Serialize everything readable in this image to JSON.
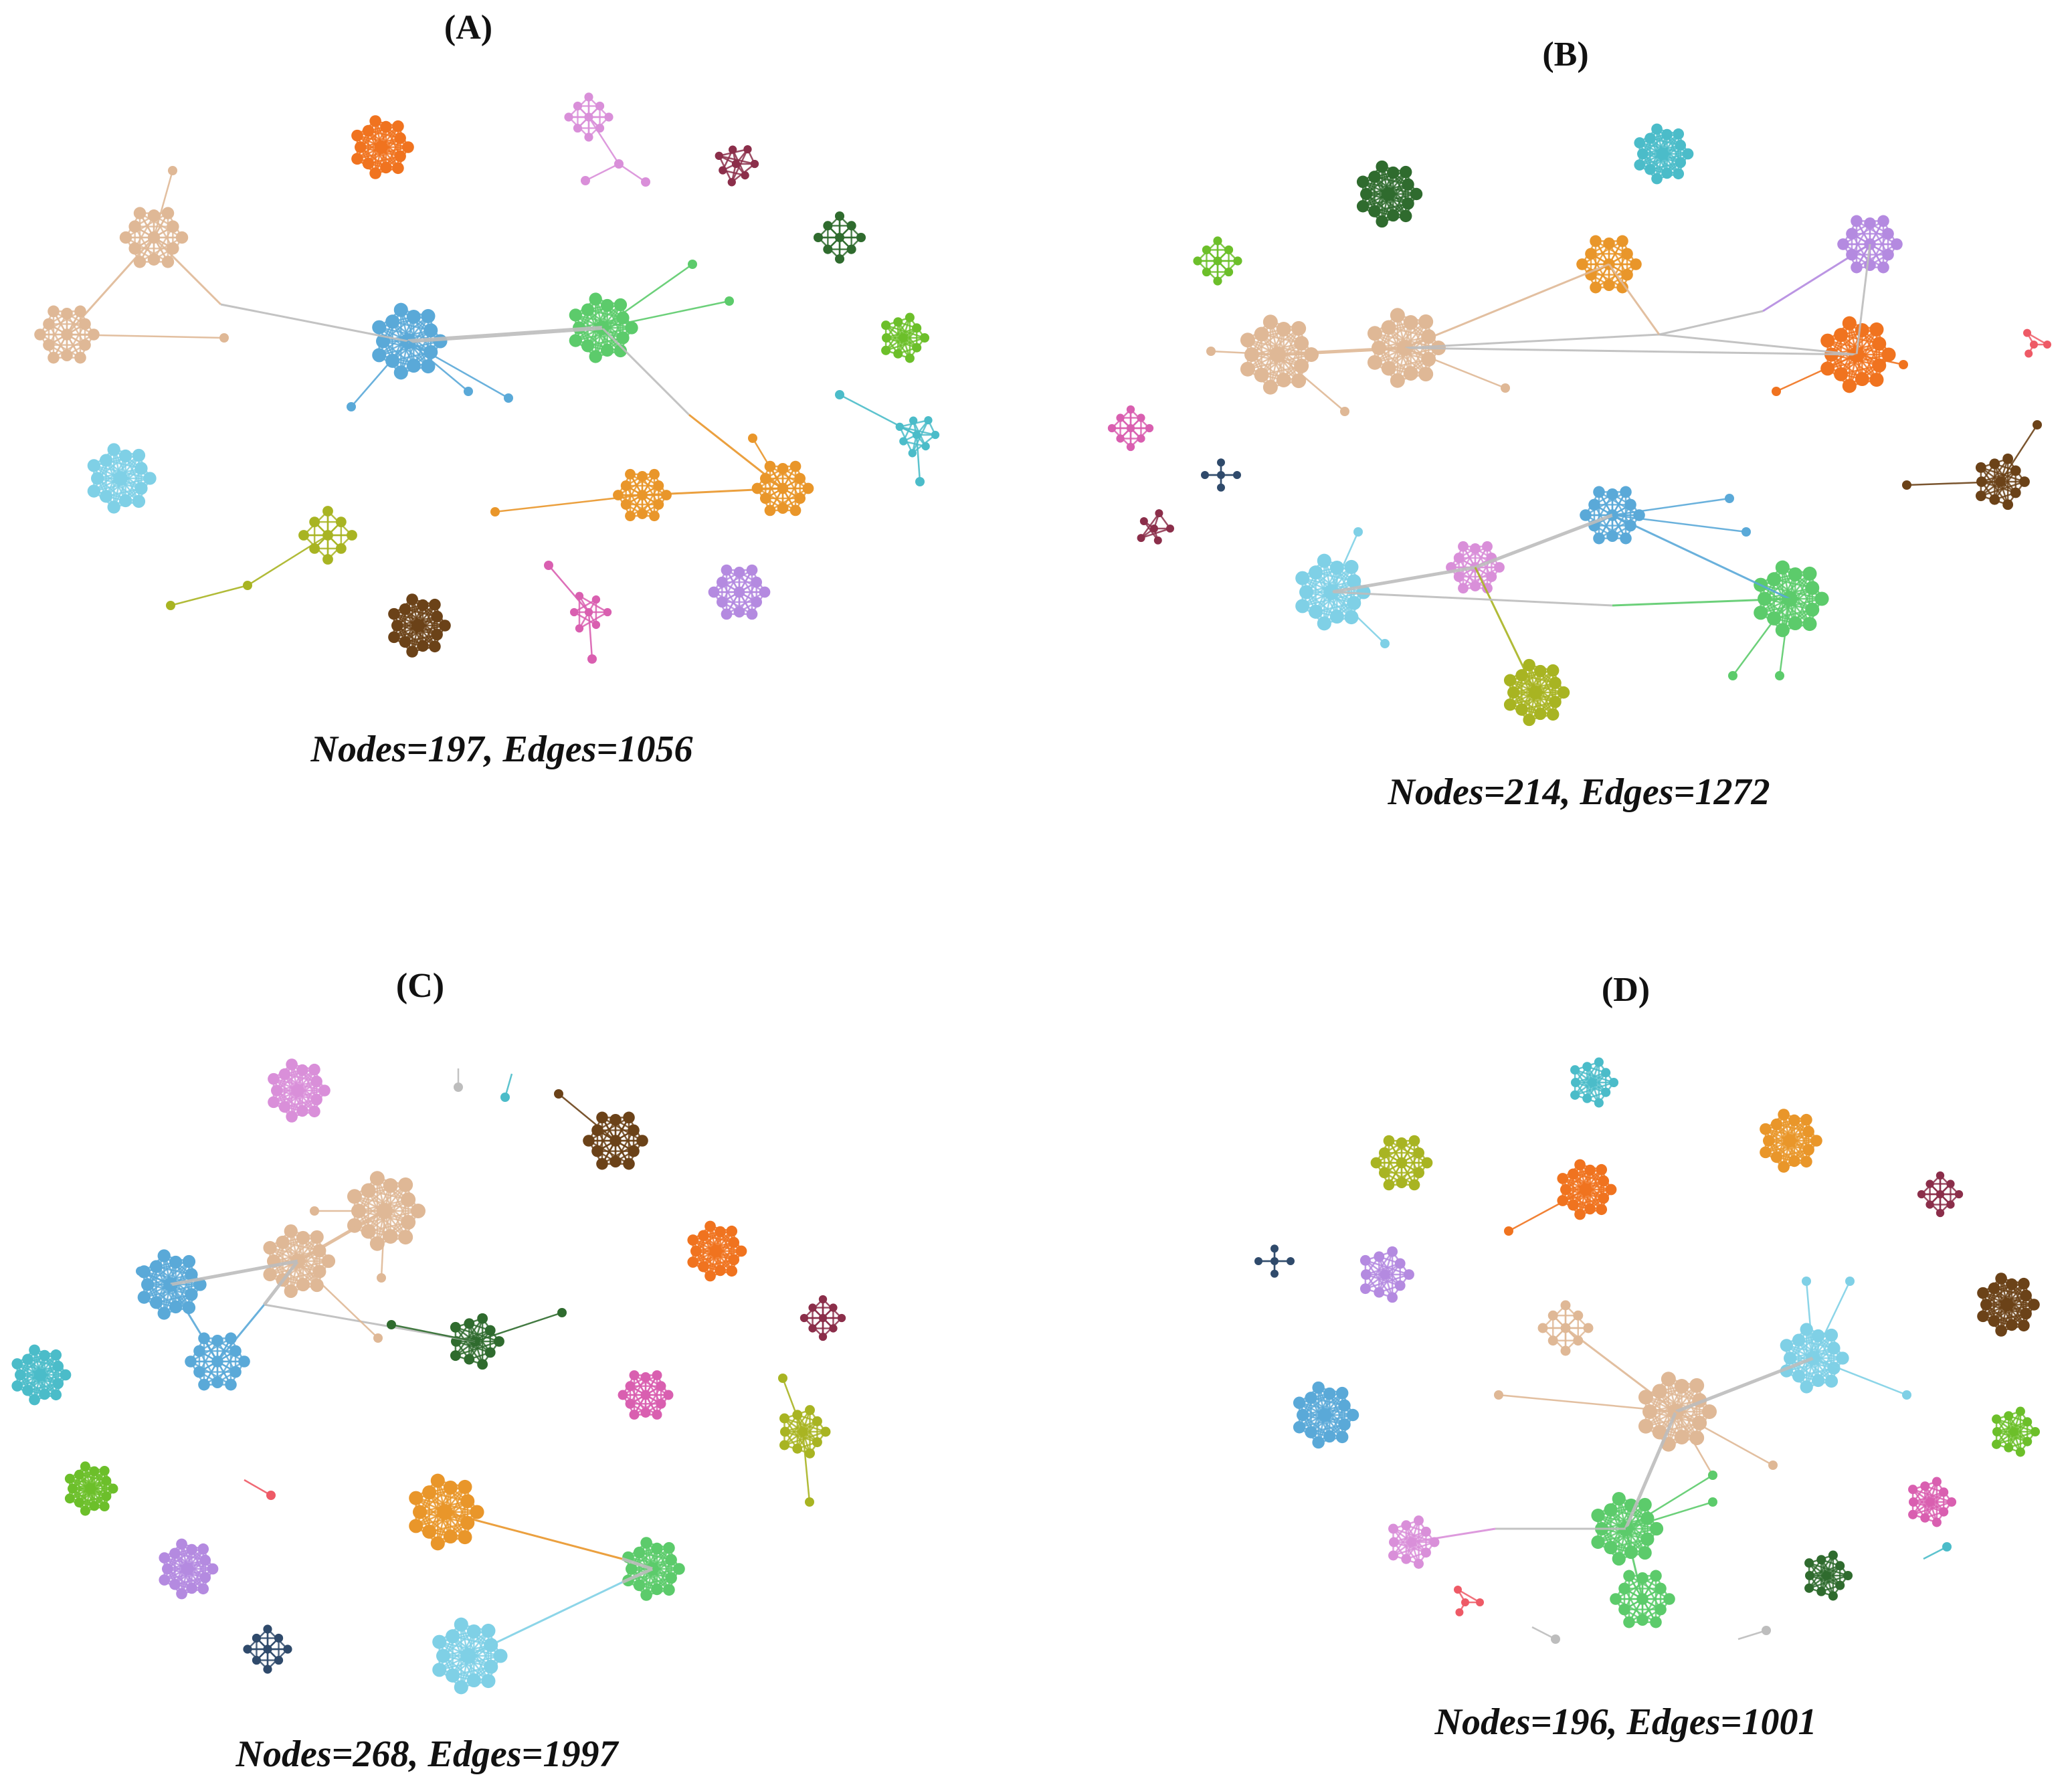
{
  "panels": [
    {
      "id": "A",
      "label": "(A)",
      "caption": "Nodes=197, Edges=1056"
    },
    {
      "id": "B",
      "label": "(B)",
      "caption": "Nodes=214, Edges=1272"
    },
    {
      "id": "C",
      "label": "(C)",
      "caption": "Nodes=268, Edges=1997"
    },
    {
      "id": "D",
      "label": "(D)",
      "caption": "Nodes=196, Edges=1001"
    }
  ],
  "colors": {
    "tan": "#dfb896",
    "blue": "#5aa9d8",
    "green": "#5ccb6b",
    "orange_light": "#e9962a",
    "orange": "#f0731f",
    "pink": "#d98fd9",
    "maroon": "#8b2e4a",
    "dark_green": "#2f6b2e",
    "lime": "#6cbf2a",
    "cyan": "#4bbcc9",
    "sky": "#7fd0e6",
    "olive": "#a8b422",
    "magenta": "#d95fb0",
    "purple": "#b48ae0",
    "brown": "#6b4218",
    "navy": "#2f4a6b",
    "red": "#ee5a66",
    "grey": "#bdbdbd"
  }
}
